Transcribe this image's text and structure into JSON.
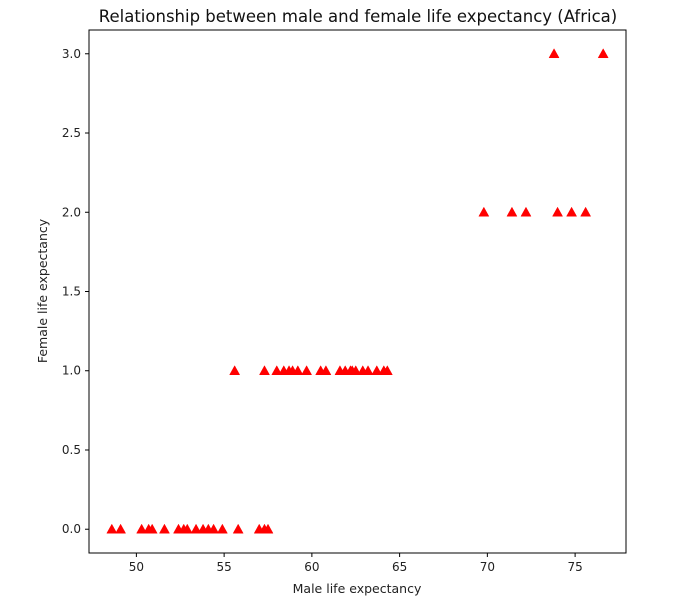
{
  "chart_data": {
    "type": "scatter",
    "title": "Relationship between male and female life expectancy (Africa)",
    "xlabel": "Male life expectancy",
    "ylabel": "Female life expectancy",
    "xlim": [
      47.3,
      77.9
    ],
    "ylim": [
      -0.15,
      3.15
    ],
    "xticks": [
      50,
      55,
      60,
      65,
      70,
      75
    ],
    "xtick_labels": [
      "50",
      "55",
      "60",
      "65",
      "70",
      "75"
    ],
    "yticks": [
      0.0,
      0.5,
      1.0,
      1.5,
      2.0,
      2.5,
      3.0
    ],
    "ytick_labels": [
      "0.0",
      "0.5",
      "1.0",
      "1.5",
      "2.0",
      "2.5",
      "3.0"
    ],
    "grid": false,
    "legend": "none",
    "marker": "triangle",
    "color": "#ff0000",
    "x": [
      48.6,
      49.1,
      50.3,
      50.7,
      50.9,
      51.6,
      52.4,
      52.7,
      52.9,
      53.4,
      53.8,
      54.1,
      54.4,
      54.9,
      55.8,
      57.0,
      57.3,
      57.5,
      55.6,
      57.3,
      58.0,
      58.4,
      58.7,
      58.9,
      59.2,
      59.7,
      60.5,
      60.8,
      61.6,
      61.9,
      62.2,
      62.3,
      62.5,
      62.9,
      63.2,
      63.7,
      64.1,
      64.3,
      69.8,
      71.4,
      72.2,
      74.0,
      74.8,
      75.6,
      73.8,
      76.6
    ],
    "y": [
      0,
      0,
      0,
      0,
      0,
      0,
      0,
      0,
      0,
      0,
      0,
      0,
      0,
      0,
      0,
      0,
      0,
      0,
      1,
      1,
      1,
      1,
      1,
      1,
      1,
      1,
      1,
      1,
      1,
      1,
      1,
      1,
      1,
      1,
      1,
      1,
      1,
      1,
      2,
      2,
      2,
      2,
      2,
      2,
      3,
      3
    ]
  }
}
